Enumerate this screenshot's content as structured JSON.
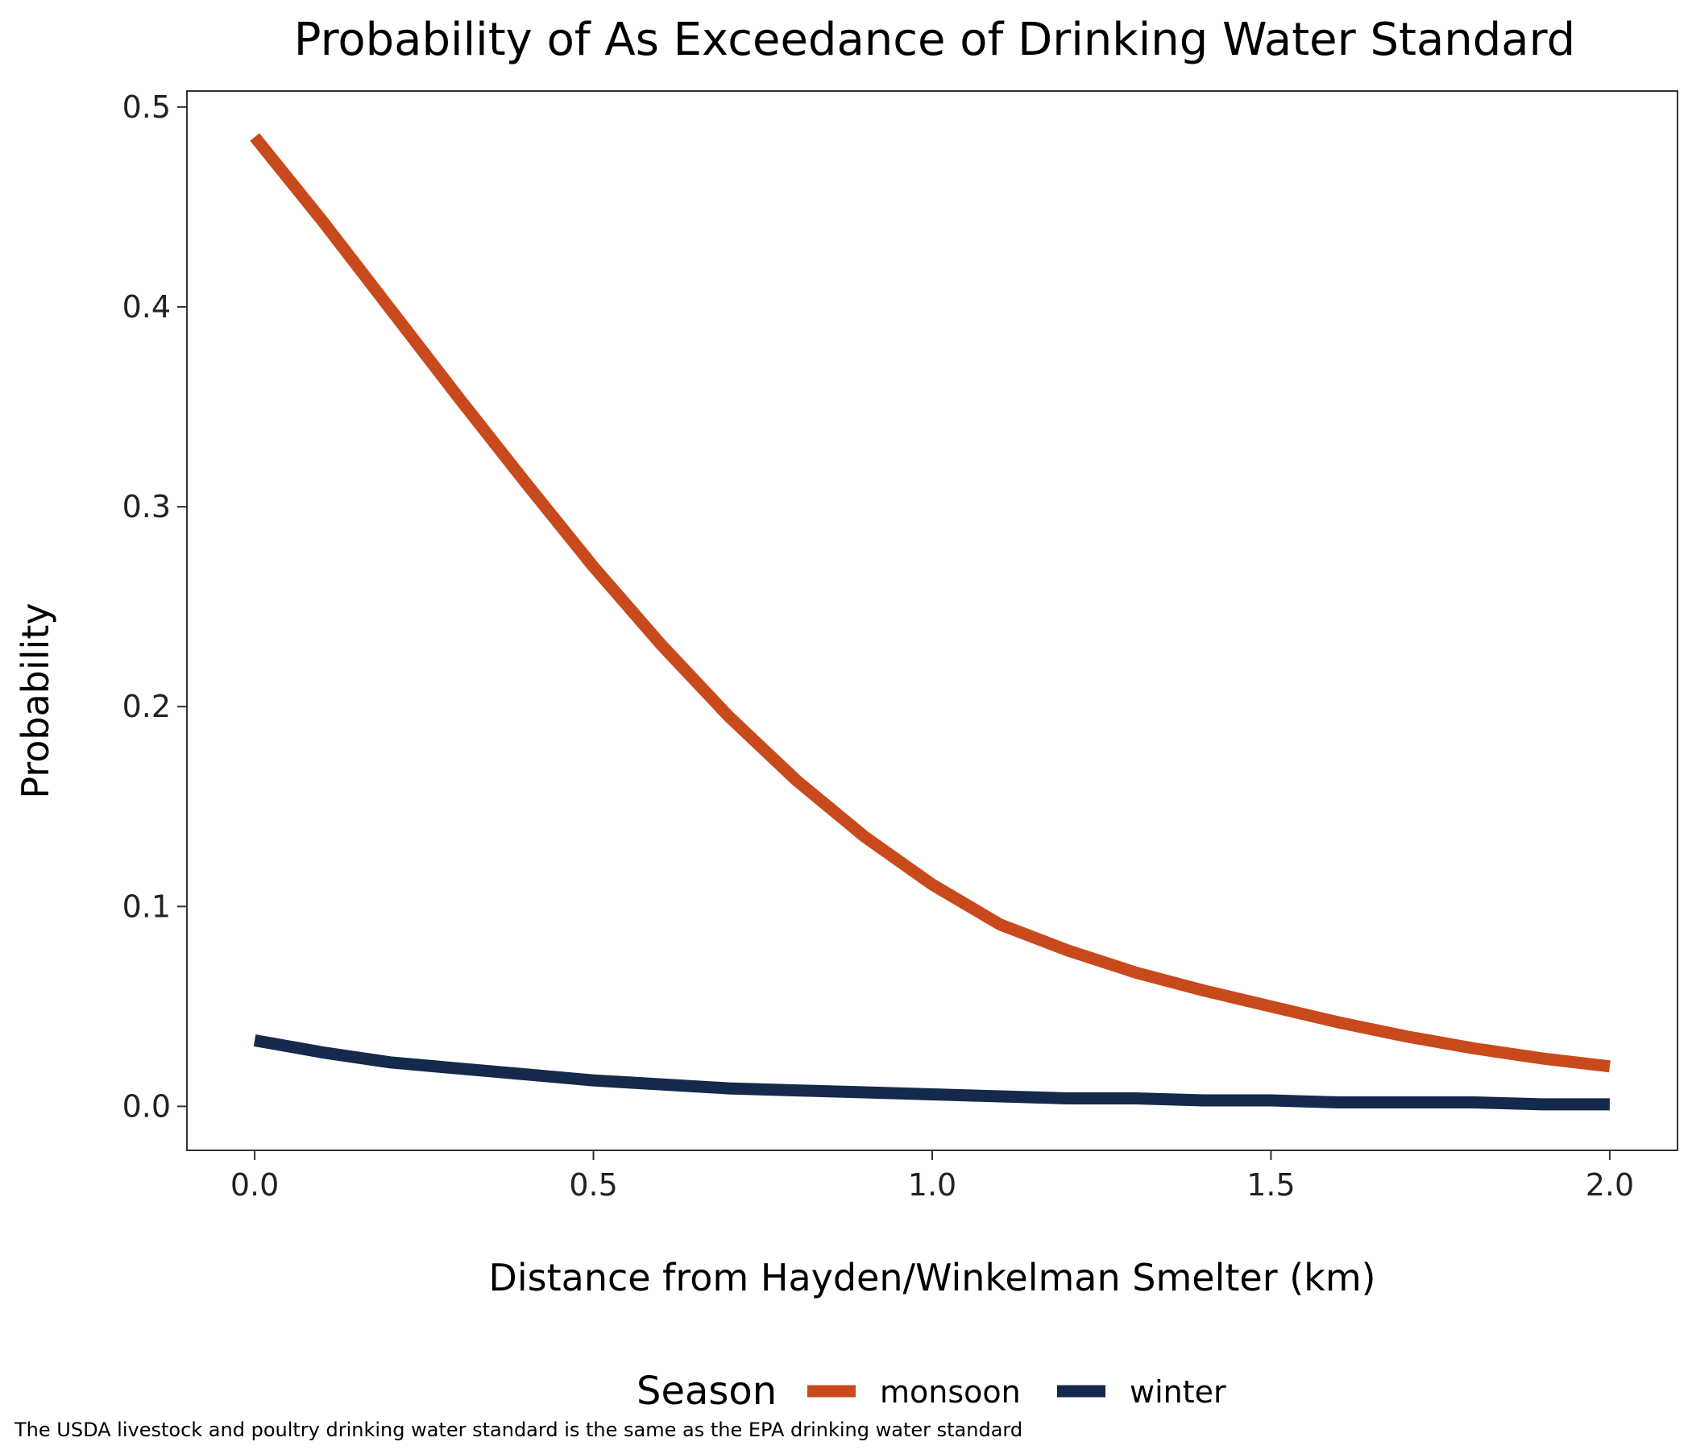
{
  "chart_data": {
    "type": "line",
    "title": "Probability of As Exceedance of Drinking Water Standard",
    "xlabel": "Distance from Hayden/Winkelman Smelter (km)",
    "ylabel": "Probability",
    "caption": "The USDA livestock and poultry drinking water standard is the same as the EPA drinking water standard",
    "xlim": [
      -0.1,
      2.1
    ],
    "ylim": [
      -0.022,
      0.508
    ],
    "xticks": [
      0.0,
      0.5,
      1.0,
      1.5,
      2.0
    ],
    "xtick_labels": [
      "0.0",
      "0.5",
      "1.0",
      "1.5",
      "2.0"
    ],
    "yticks": [
      0.0,
      0.1,
      0.2,
      0.3,
      0.4,
      0.5
    ],
    "ytick_labels": [
      "0.0",
      "0.1",
      "0.2",
      "0.3",
      "0.4",
      "0.5"
    ],
    "grid": false,
    "legend": {
      "title": "Season",
      "position": "bottom"
    },
    "x": [
      0.0,
      0.1,
      0.2,
      0.3,
      0.4,
      0.5,
      0.6,
      0.7,
      0.8,
      0.9,
      1.0,
      1.1,
      1.2,
      1.3,
      1.4,
      1.5,
      1.6,
      1.7,
      1.8,
      1.9,
      2.0
    ],
    "series": [
      {
        "name": "monsoon",
        "color": "#C84A1C",
        "values": [
          0.485,
          0.443,
          0.399,
          0.355,
          0.312,
          0.27,
          0.231,
          0.195,
          0.163,
          0.135,
          0.111,
          0.091,
          0.078,
          0.067,
          0.058,
          0.05,
          0.042,
          0.035,
          0.029,
          0.024,
          0.02
        ]
      },
      {
        "name": "winter",
        "color": "#14294B",
        "values": [
          0.033,
          0.027,
          0.022,
          0.019,
          0.016,
          0.013,
          0.011,
          0.009,
          0.008,
          0.007,
          0.006,
          0.005,
          0.004,
          0.004,
          0.003,
          0.003,
          0.002,
          0.002,
          0.002,
          0.001,
          0.001
        ]
      }
    ]
  }
}
